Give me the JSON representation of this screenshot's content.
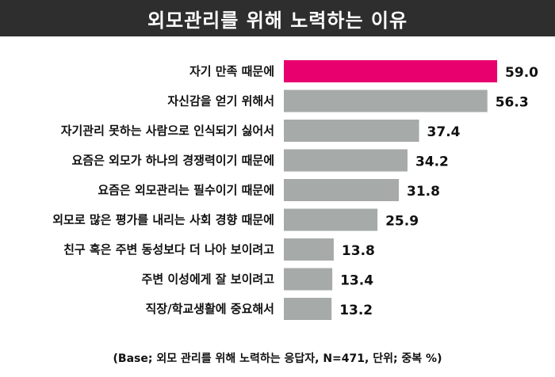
{
  "title": "외모관리를 위해 노력하는 이유",
  "footnote": "(Base; 외모 관리를 위해 노력하는 응답자, N=471, 단위; 중복 %)",
  "colors": {
    "highlight": "#e8006e",
    "bar": "#a6aaa9",
    "title_bg": "#2e2e2e"
  },
  "chart_data": {
    "type": "bar",
    "orientation": "horizontal",
    "categories": [
      "자기 만족 때문에",
      "자신감을 얻기 위해서",
      "자기관리 못하는 사람으로 인식되기 싫어서",
      "요즘은 외모가 하나의 경쟁력이기 때문에",
      "요즘은 외모관리는 필수이기 때문에",
      "외모로 많은 평가를 내리는 사회 경향 때문에",
      "친구 혹은 주변 동성보다 더 나아 보이려고",
      "주변 이성에게 잘 보이려고",
      "직장/학교생활에 중요해서"
    ],
    "values": [
      59.0,
      56.3,
      37.4,
      34.2,
      31.8,
      25.9,
      13.8,
      13.4,
      13.2
    ],
    "value_labels": [
      "59.0",
      "56.3",
      "37.4",
      "34.2",
      "31.8",
      "25.9",
      "13.8",
      "13.4",
      "13.2"
    ],
    "highlight_index": 0
  }
}
